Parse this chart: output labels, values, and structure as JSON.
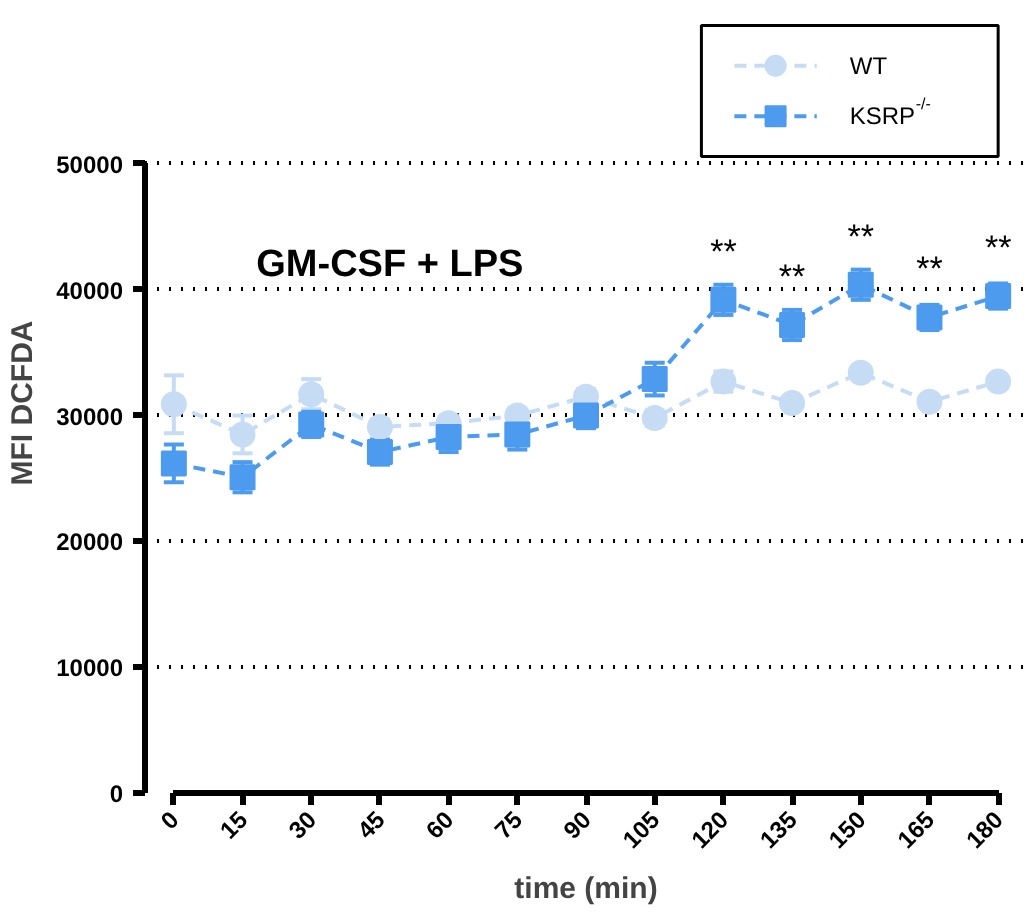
{
  "chart_data": {
    "type": "line",
    "xlabel": "time (min)",
    "ylabel": "MFI DCFDA",
    "x": [
      0,
      15,
      30,
      45,
      60,
      75,
      90,
      105,
      120,
      135,
      150,
      165,
      180
    ],
    "xlim": [
      0,
      180
    ],
    "xticks": [
      0,
      15,
      30,
      45,
      60,
      75,
      90,
      105,
      120,
      135,
      150,
      165,
      180
    ],
    "ylim": [
      0,
      50000
    ],
    "yticks": [
      0,
      10000,
      20000,
      30000,
      40000,
      50000
    ],
    "grid": "y",
    "legend": "top right",
    "line_style": "dashed",
    "series": [
      {
        "name": "WT",
        "color": "#c6dcf5",
        "marker": "circle",
        "values": [
          30900,
          28500,
          31700,
          29100,
          29400,
          30000,
          31500,
          29800,
          32700,
          31000,
          33400,
          31100,
          32700
        ],
        "errors": [
          2300,
          1500,
          1200,
          600,
          600,
          600,
          600,
          600,
          800,
          400,
          400,
          400,
          400
        ]
      },
      {
        "name": "KSRP$^{-/-}$",
        "color": "#4c9bef",
        "marker": "square",
        "values": [
          26200,
          25100,
          29300,
          27100,
          28300,
          28500,
          30000,
          32900,
          39200,
          37200,
          40400,
          37800,
          39500
        ],
        "errors": [
          1500,
          1200,
          1000,
          1000,
          1200,
          1200,
          1000,
          1300,
          1200,
          1200,
          1200,
          1000,
          1000
        ]
      }
    ],
    "annotations": [
      "GM-CSF + LPS",
      {
        "text": "**",
        "x": 120,
        "y": 39200
      },
      {
        "text": "**",
        "x": 135,
        "y": 37200
      },
      {
        "text": "**",
        "x": 150,
        "y": 40400
      },
      {
        "text": "**",
        "x": 165,
        "y": 37800
      },
      {
        "text": "**",
        "x": 180,
        "y": 39500
      }
    ]
  }
}
